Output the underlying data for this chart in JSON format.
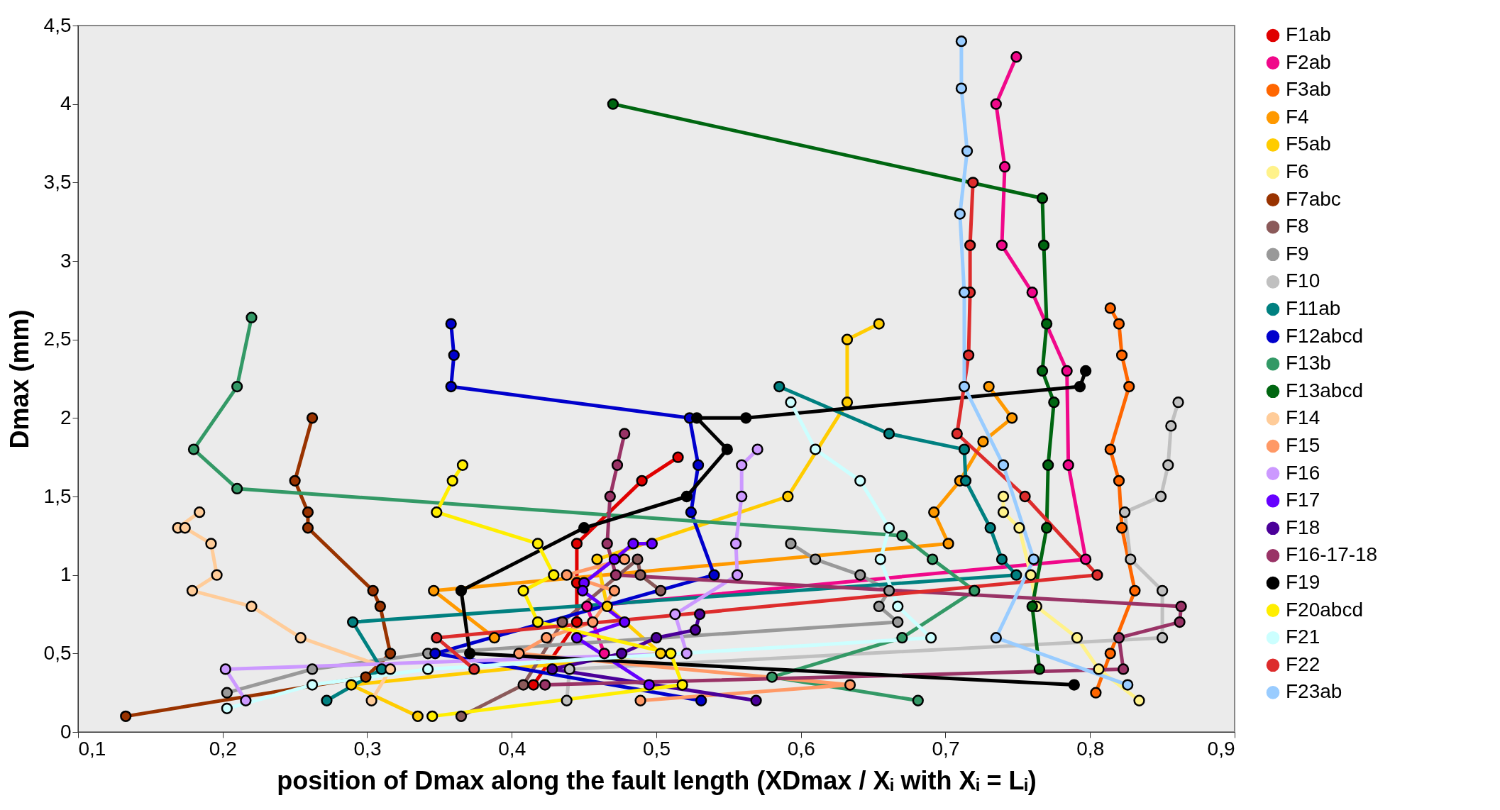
{
  "chart_data": {
    "type": "line",
    "xlabel": "position of Dmax along the fault length (XDmax / Xᵢ with Xᵢ = Lᵢ)",
    "ylabel": "Dmax (mm)",
    "xlim": [
      0.1,
      0.9
    ],
    "ylim": [
      0,
      4.5
    ],
    "xticks": [
      {
        "value": 0.1,
        "label": "0,1"
      },
      {
        "value": 0.2,
        "label": "0,2"
      },
      {
        "value": 0.3,
        "label": "0,3"
      },
      {
        "value": 0.4,
        "label": "0,4"
      },
      {
        "value": 0.5,
        "label": "0,5"
      },
      {
        "value": 0.6,
        "label": "0,6"
      },
      {
        "value": 0.7,
        "label": "0,7"
      },
      {
        "value": 0.8,
        "label": "0,8"
      },
      {
        "value": 0.9,
        "label": "0,9"
      }
    ],
    "yticks": [
      0,
      {
        "value": 0.5,
        "label": "0,5"
      },
      1,
      {
        "value": 1.5,
        "label": "1,5"
      },
      2,
      {
        "value": 2.5,
        "label": "2,5"
      },
      3,
      {
        "value": 3.5,
        "label": "3,5"
      },
      4,
      {
        "value": 4.5,
        "label": "4,5"
      }
    ],
    "grid": false,
    "legend": "right",
    "marker": "circle",
    "line_style": "solid",
    "series": [
      {
        "name": "F1ab",
        "color": "#e00000",
        "x": [
          0.515,
          0.49,
          0.445,
          0.445,
          0.445,
          0.415
        ],
        "values": [
          1.75,
          1.6,
          1.2,
          0.95,
          0.7,
          0.3
        ]
      },
      {
        "name": "F2ab",
        "color": "#f0088a",
        "x": [
          0.749,
          0.735,
          0.741,
          0.739,
          0.76,
          0.784,
          0.785,
          0.797,
          0.452,
          0.464
        ],
        "values": [
          4.3,
          4.0,
          3.6,
          3.1,
          2.8,
          2.3,
          1.7,
          1.1,
          0.8,
          0.5
        ]
      },
      {
        "name": "F3ab",
        "color": "#ff6600",
        "x": [
          0.814,
          0.82,
          0.822,
          0.827,
          0.814,
          0.82,
          0.822,
          0.831,
          0.814,
          0.804
        ],
        "values": [
          2.7,
          2.6,
          2.4,
          2.2,
          1.8,
          1.6,
          1.3,
          0.9,
          0.5,
          0.25
        ]
      },
      {
        "name": "F4",
        "color": "#ff9900",
        "x": [
          0.73,
          0.746,
          0.726,
          0.71,
          0.692,
          0.702,
          0.346,
          0.388
        ],
        "values": [
          2.2,
          2.0,
          1.85,
          1.6,
          1.4,
          1.2,
          0.9,
          0.6
        ]
      },
      {
        "name": "F5ab",
        "color": "#ffcc00",
        "x": [
          0.654,
          0.632,
          0.632,
          0.591,
          0.459,
          0.466,
          0.503,
          0.289,
          0.335
        ],
        "values": [
          2.6,
          2.5,
          2.1,
          1.5,
          1.1,
          0.8,
          0.5,
          0.3,
          0.1
        ]
      },
      {
        "name": "F6",
        "color": "#fff28a",
        "x": [
          0.74,
          0.74,
          0.751,
          0.759,
          0.763,
          0.791,
          0.806,
          0.834
        ],
        "values": [
          1.5,
          1.4,
          1.3,
          1.0,
          0.8,
          0.6,
          0.4,
          0.2
        ]
      },
      {
        "name": "F7abc",
        "color": "#993300",
        "x": [
          0.262,
          0.25,
          0.259,
          0.259,
          0.304,
          0.309,
          0.316,
          0.299,
          0.133
        ],
        "values": [
          2.0,
          1.6,
          1.4,
          1.3,
          0.9,
          0.8,
          0.5,
          0.35,
          0.1
        ]
      },
      {
        "name": "F8",
        "color": "#8b5a5a",
        "x": [
          0.365,
          0.408,
          0.435,
          0.487,
          0.489,
          0.503
        ],
        "values": [
          0.1,
          0.3,
          0.7,
          1.1,
          1.0,
          0.9
        ]
      },
      {
        "name": "F9",
        "color": "#999999",
        "x": [
          0.593,
          0.61,
          0.641,
          0.661,
          0.654,
          0.667,
          0.342,
          0.262,
          0.203
        ],
        "values": [
          1.2,
          1.1,
          1.0,
          0.9,
          0.8,
          0.7,
          0.5,
          0.4,
          0.25
        ]
      },
      {
        "name": "F10",
        "color": "#c0c0c0",
        "x": [
          0.861,
          0.856,
          0.854,
          0.849,
          0.824,
          0.828,
          0.85,
          0.85,
          0.44,
          0.438
        ],
        "values": [
          2.1,
          1.95,
          1.7,
          1.5,
          1.4,
          1.1,
          0.9,
          0.6,
          0.4,
          0.2
        ]
      },
      {
        "name": "F11ab",
        "color": "#008080",
        "x": [
          0.585,
          0.661,
          0.713,
          0.714,
          0.731,
          0.739,
          0.749,
          0.29,
          0.31,
          0.272
        ],
        "values": [
          2.2,
          1.9,
          1.8,
          1.6,
          1.3,
          1.1,
          1.0,
          0.7,
          0.4,
          0.2
        ]
      },
      {
        "name": "F12abcd",
        "color": "#0000cc",
        "x": [
          0.358,
          0.36,
          0.358,
          0.523,
          0.529,
          0.524,
          0.54,
          0.347,
          0.531
        ],
        "values": [
          2.6,
          2.4,
          2.2,
          2.0,
          1.7,
          1.4,
          1.0,
          0.5,
          0.2
        ]
      },
      {
        "name": "F13b",
        "color": "#339966",
        "x": [
          0.22,
          0.21,
          0.18,
          0.21,
          0.67,
          0.691,
          0.72,
          0.67,
          0.58,
          0.681
        ],
        "values": [
          2.64,
          2.2,
          1.8,
          1.55,
          1.25,
          1.1,
          0.9,
          0.6,
          0.35,
          0.2
        ]
      },
      {
        "name": "F13abcd",
        "color": "#006611",
        "x": [
          0.47,
          0.767,
          0.768,
          0.77,
          0.767,
          0.775,
          0.771,
          0.77,
          0.76,
          0.765
        ],
        "values": [
          4.0,
          3.4,
          3.1,
          2.6,
          2.3,
          2.1,
          1.7,
          1.3,
          0.8,
          0.4
        ]
      },
      {
        "name": "F14",
        "color": "#ffcc99",
        "x": [
          0.184,
          0.169,
          0.174,
          0.192,
          0.196,
          0.179,
          0.22,
          0.254,
          0.316,
          0.303
        ],
        "values": [
          1.4,
          1.3,
          1.3,
          1.2,
          1.0,
          0.9,
          0.8,
          0.6,
          0.4,
          0.2
        ]
      },
      {
        "name": "F15",
        "color": "#ff9966",
        "x": [
          0.478,
          0.438,
          0.471,
          0.456,
          0.424,
          0.405,
          0.634,
          0.489
        ],
        "values": [
          1.1,
          1.0,
          0.9,
          0.7,
          0.6,
          0.5,
          0.3,
          0.2
        ]
      },
      {
        "name": "F16",
        "color": "#cc99ff",
        "x": [
          0.57,
          0.559,
          0.559,
          0.555,
          0.556,
          0.513,
          0.521,
          0.202,
          0.216
        ],
        "values": [
          1.8,
          1.7,
          1.5,
          1.2,
          1.0,
          0.75,
          0.5,
          0.4,
          0.2
        ]
      },
      {
        "name": "F17",
        "color": "#6600ff",
        "x": [
          0.497,
          0.484,
          0.471,
          0.45,
          0.449,
          0.478,
          0.445,
          0.495
        ],
        "values": [
          1.2,
          1.2,
          1.1,
          0.95,
          0.9,
          0.7,
          0.6,
          0.3
        ]
      },
      {
        "name": "F18",
        "color": "#4b0099",
        "x": [
          0.53,
          0.527,
          0.5,
          0.476,
          0.428,
          0.569
        ],
        "values": [
          0.75,
          0.65,
          0.6,
          0.5,
          0.4,
          0.2
        ]
      },
      {
        "name": "F16-17-18",
        "color": "#993366",
        "x": [
          0.478,
          0.473,
          0.468,
          0.466,
          0.472,
          0.863,
          0.862,
          0.82,
          0.823,
          0.423
        ],
        "values": [
          1.9,
          1.7,
          1.5,
          1.2,
          1.0,
          0.8,
          0.7,
          0.6,
          0.4,
          0.3
        ]
      },
      {
        "name": "F19",
        "color": "#000000",
        "x": [
          0.797,
          0.793,
          0.562,
          0.528,
          0.549,
          0.521,
          0.45,
          0.365,
          0.371,
          0.789
        ],
        "values": [
          2.3,
          2.2,
          2.0,
          2.0,
          1.8,
          1.5,
          1.3,
          0.9,
          0.5,
          0.3
        ]
      },
      {
        "name": "F20abcd",
        "color": "#ffee00",
        "x": [
          0.366,
          0.359,
          0.348,
          0.418,
          0.429,
          0.408,
          0.418,
          0.51,
          0.518,
          0.345
        ],
        "values": [
          1.7,
          1.6,
          1.4,
          1.2,
          1.0,
          0.9,
          0.7,
          0.5,
          0.3,
          0.1
        ]
      },
      {
        "name": "F21",
        "color": "#ccffff",
        "x": [
          0.593,
          0.61,
          0.641,
          0.661,
          0.655,
          0.667,
          0.69,
          0.342,
          0.262,
          0.203
        ],
        "values": [
          2.1,
          1.8,
          1.6,
          1.3,
          1.1,
          0.8,
          0.6,
          0.4,
          0.3,
          0.15
        ]
      },
      {
        "name": "F22",
        "color": "#dd2c2c",
        "x": [
          0.719,
          0.717,
          0.717,
          0.716,
          0.708,
          0.755,
          0.805,
          0.348,
          0.374
        ],
        "values": [
          3.5,
          3.1,
          2.8,
          2.4,
          1.9,
          1.5,
          1.0,
          0.6,
          0.4
        ]
      },
      {
        "name": "F23ab",
        "color": "#99ccff",
        "x": [
          0.711,
          0.711,
          0.715,
          0.71,
          0.713,
          0.713,
          0.74,
          0.761,
          0.735,
          0.826
        ],
        "values": [
          4.4,
          4.1,
          3.7,
          3.3,
          2.8,
          2.2,
          1.7,
          1.1,
          0.6,
          0.3
        ]
      }
    ]
  }
}
